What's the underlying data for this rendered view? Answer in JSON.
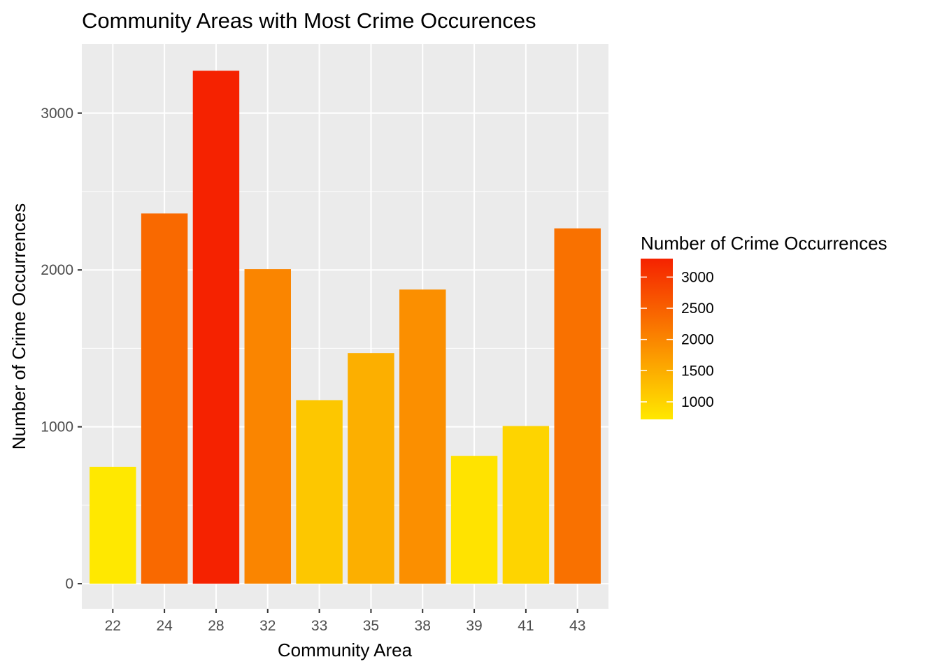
{
  "chart_data": {
    "type": "bar",
    "title": "Community Areas with Most Crime Occurences",
    "xlabel": "Community Area",
    "ylabel": "Number of Crime Occurrences",
    "categories": [
      "22",
      "24",
      "28",
      "32",
      "33",
      "35",
      "38",
      "39",
      "41",
      "43"
    ],
    "values": [
      745,
      2360,
      3270,
      2005,
      1170,
      1470,
      1875,
      815,
      1005,
      2265
    ],
    "ylim": [
      -160,
      3440
    ],
    "yticks": [
      0,
      1000,
      2000,
      3000
    ],
    "grid": true,
    "panel_background": "#ebebeb",
    "legend": {
      "title": "Number of Crime Occurrences",
      "placement": "right",
      "ticks": [
        1000,
        1500,
        2000,
        2500,
        3000
      ],
      "min": 745,
      "max": 3270,
      "low_color": "#ffe800",
      "high_color": "#f52200"
    }
  }
}
